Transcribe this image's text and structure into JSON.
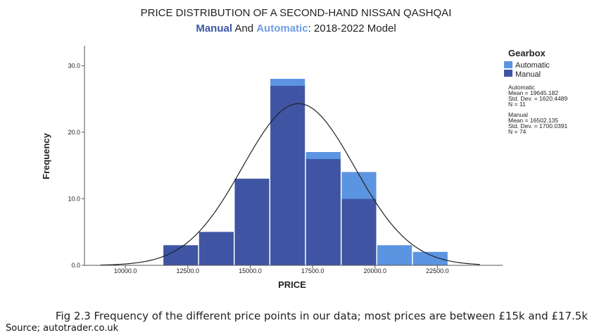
{
  "header": {
    "title": "PRICE DISTRIBUTION OF A SECOND-HAND NISSAN QASHQAI",
    "subtitle_manual": "Manual",
    "subtitle_and": " And ",
    "subtitle_automatic": "Automatic",
    "subtitle_rest": ": 2018-2022 Model"
  },
  "footer": {
    "caption": "Fig 2.3 Frequency of the different price points in our data; most prices are between £15k and £17.5k",
    "source": "Source; autotrader.co.uk"
  },
  "chart_data": {
    "type": "bar",
    "stacked": true,
    "xlabel": "PRICE",
    "ylabel": "Frequency",
    "xlim": [
      8500,
      25000
    ],
    "ylim": [
      0,
      33
    ],
    "x_ticks": [
      10000,
      12500,
      15000,
      17500,
      20000,
      22500
    ],
    "x_tick_labels": [
      "10000.0",
      "12500.0",
      "15000.0",
      "17500.0",
      "20000.0",
      "22500.0"
    ],
    "y_ticks": [
      0,
      10,
      20,
      30
    ],
    "y_tick_labels": [
      "0.0",
      "10.0",
      "20.0",
      "30.0"
    ],
    "bin_width": 1429,
    "bins": [
      {
        "start": 11500,
        "end": 12929
      },
      {
        "start": 12929,
        "end": 14357
      },
      {
        "start": 14357,
        "end": 15786
      },
      {
        "start": 15786,
        "end": 17214
      },
      {
        "start": 17214,
        "end": 18643
      },
      {
        "start": 18643,
        "end": 20071
      },
      {
        "start": 20071,
        "end": 21500
      },
      {
        "start": 21500,
        "end": 22929
      }
    ],
    "series": [
      {
        "name": "Manual",
        "color": "#3f55a3",
        "values": [
          3,
          5,
          13,
          27,
          16,
          10,
          0,
          0
        ]
      },
      {
        "name": "Automatic",
        "color": "#5b94e0",
        "values": [
          0,
          0,
          0,
          1,
          1,
          4,
          3,
          2
        ]
      }
    ],
    "normal_curve": {
      "mean": 16938,
      "std": 2250,
      "peak": 24.3,
      "color": "#222222"
    },
    "legend": {
      "title": "Gearbox",
      "placement": "right",
      "stats": [
        {
          "lines": [
            "Automatic",
            "Mean = 19645.182",
            "Std. Dev. = 1620.4489",
            "N = 11"
          ]
        },
        {
          "lines": [
            "Manual",
            "Mean = 16502.135",
            "Std. Dev. = 1700.0391",
            "N = 74"
          ]
        }
      ]
    }
  }
}
